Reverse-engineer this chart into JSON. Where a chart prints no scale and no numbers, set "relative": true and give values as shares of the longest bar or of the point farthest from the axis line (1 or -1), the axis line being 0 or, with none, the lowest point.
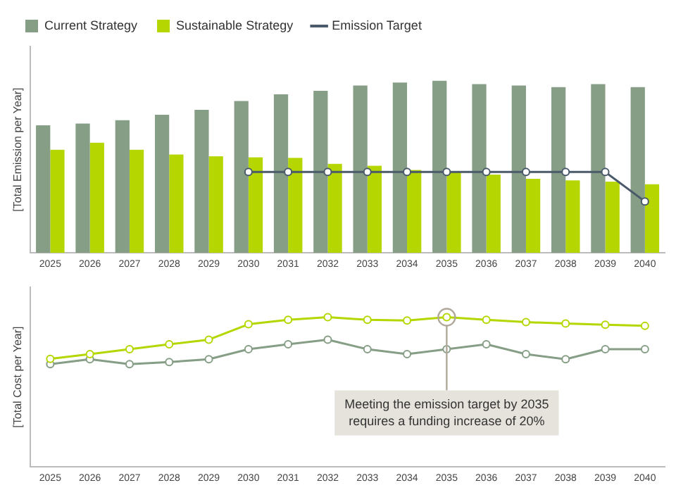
{
  "chart_data": [
    {
      "type": "bar",
      "ylabel": "[Total Emission per Year]",
      "relative": true,
      "legend": "top left",
      "categories": [
        "2025",
        "2026",
        "2027",
        "2028",
        "2029",
        "2030",
        "2031",
        "2032",
        "2033",
        "2034",
        "2035",
        "2036",
        "2037",
        "2038",
        "2039",
        "2040"
      ],
      "series": [
        {
          "name": "Current Strategy",
          "color": "#869e86",
          "values": [
            0.742,
            0.752,
            0.771,
            0.803,
            0.832,
            0.883,
            0.922,
            0.942,
            0.973,
            0.99,
            1,
            0.981,
            0.973,
            0.964,
            0.981,
            0.964
          ]
        },
        {
          "name": "Sustainable Strategy",
          "color": "#b5d600",
          "values": [
            0.599,
            0.64,
            0.599,
            0.572,
            0.562,
            0.555,
            0.552,
            0.518,
            0.506,
            0.482,
            0.47,
            0.455,
            0.431,
            0.421,
            0.414,
            0.399
          ]
        },
        {
          "name": "Emission Target",
          "type": "line",
          "color": "#4a5a6a",
          "marker": "circle",
          "values": [
            null,
            null,
            null,
            null,
            null,
            0.47,
            0.47,
            0.47,
            0.47,
            0.47,
            0.47,
            0.47,
            0.47,
            0.47,
            0.47,
            0.299
          ]
        }
      ]
    },
    {
      "type": "line",
      "ylabel": "[Total Cost per Year]",
      "relative": true,
      "legend": false,
      "marker": "circle",
      "categories": [
        "2025",
        "2026",
        "2027",
        "2028",
        "2029",
        "2030",
        "2031",
        "2032",
        "2033",
        "2034",
        "2035",
        "2036",
        "2037",
        "2038",
        "2039",
        "2040"
      ],
      "series": [
        {
          "color": "#b5d600",
          "values": [
            0.722,
            0.753,
            0.786,
            0.819,
            0.85,
            0.953,
            0.983,
            1,
            0.983,
            0.978,
            1,
            0.983,
            0.967,
            0.958,
            0.95,
            0.942
          ]
        },
        {
          "color": "#869e86",
          "values": [
            0.686,
            0.719,
            0.686,
            0.7,
            0.719,
            0.786,
            0.819,
            0.85,
            0.786,
            0.753,
            0.786,
            0.819,
            0.753,
            0.719,
            0.786,
            0.786
          ]
        }
      ],
      "annotations": [
        {
          "text": "Meeting the emission target by 2035 requires a funding increase of 20%",
          "x": "2035",
          "y": 1
        }
      ]
    }
  ]
}
